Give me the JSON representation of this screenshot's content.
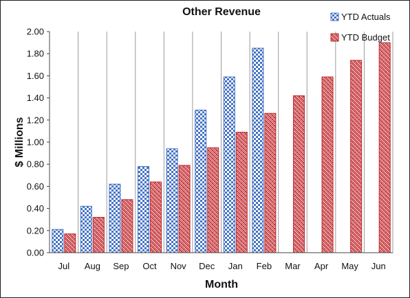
{
  "chart_data": {
    "type": "bar",
    "title": "Other Revenue",
    "xlabel": "Month",
    "ylabel": "$ Millions",
    "categories": [
      "Jul",
      "Aug",
      "Sep",
      "Oct",
      "Nov",
      "Dec",
      "Jan",
      "Feb",
      "Mar",
      "Apr",
      "May",
      "Jun"
    ],
    "series": [
      {
        "name": "YTD Actuals",
        "color": "#4472c4",
        "pattern": "checker",
        "values": [
          0.21,
          0.42,
          0.62,
          0.78,
          0.94,
          1.29,
          1.59,
          1.85,
          null,
          null,
          null,
          null
        ]
      },
      {
        "name": "YTD Budget",
        "color": "#c0282d",
        "pattern": "hatch",
        "values": [
          0.17,
          0.32,
          0.48,
          0.64,
          0.79,
          0.95,
          1.09,
          1.26,
          1.42,
          1.59,
          1.74,
          1.9
        ]
      }
    ],
    "ylim": [
      0,
      2.0
    ],
    "yticks": [
      "0.00",
      "0.20",
      "0.40",
      "0.60",
      "0.80",
      "1.00",
      "1.20",
      "1.40",
      "1.60",
      "1.80",
      "2.00"
    ],
    "grid": "vertical-category-separators",
    "legend_position": "top-right"
  }
}
